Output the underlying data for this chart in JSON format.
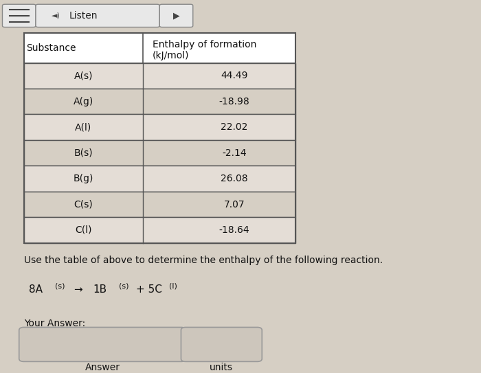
{
  "bg_color": "#d6cfc4",
  "table_substances": [
    "A(s)",
    "A(g)",
    "A(l)",
    "B(s)",
    "B(g)",
    "C(s)",
    "C(l)"
  ],
  "table_values": [
    "44.49",
    "-18.98",
    "22.02",
    "-2.14",
    "26.08",
    "7.07",
    "-18.64"
  ],
  "col_header_1": "Substance",
  "col_header_2": "Enthalpy of formation\n(kJ/mol)",
  "instruction_text": "Use the table of above to determine the enthalpy of the following reaction.",
  "reaction_text": "8A",
  "reaction_sub_reactant": "(s)",
  "reaction_arrow": "→",
  "reaction_products": " 1B",
  "reaction_sub_product1": "(s)",
  "reaction_plus": " + 5C",
  "reaction_sub_product2": "(l)",
  "your_answer_label": "Your Answer:",
  "answer_label": "Answer",
  "units_label": "units",
  "listen_text": "Listen",
  "header_color": "#ffffff",
  "table_bg_even": "#e8e0d8",
  "table_bg_odd": "#d6cfc4",
  "table_border_color": "#555555",
  "box_color": "#c8c0b8"
}
